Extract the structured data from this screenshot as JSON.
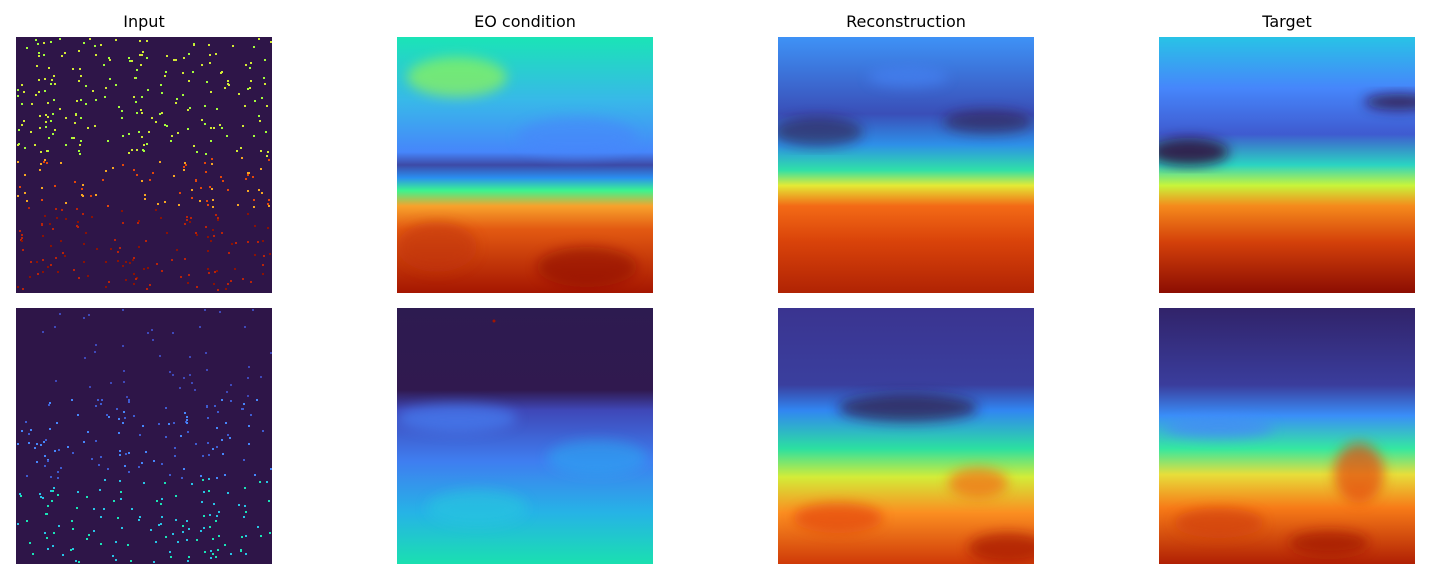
{
  "figure": {
    "columns": [
      {
        "title": "Input"
      },
      {
        "title": "EO condition"
      },
      {
        "title": "Reconstruction"
      },
      {
        "title": "Target"
      }
    ],
    "rows": [
      {
        "row": 1,
        "panels": [
          "input-sparse-points",
          "eo-condition-field",
          "reconstruction-field",
          "target-field"
        ]
      },
      {
        "row": 2,
        "panels": [
          "input-sparse-points",
          "eo-condition-field",
          "reconstruction-field",
          "target-field"
        ]
      }
    ],
    "colormap": "turbo",
    "colors": {
      "background": "#2e1548",
      "turbo_low": "#30123b",
      "turbo_blue": "#4686fb",
      "turbo_cyan": "#1ae4b6",
      "turbo_green": "#a2fc3c",
      "turbo_yellow": "#faba39",
      "turbo_orange": "#e4460a",
      "turbo_high": "#7a0403"
    }
  }
}
